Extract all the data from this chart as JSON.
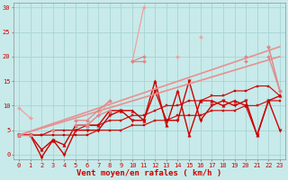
{
  "bg_color": "#c8eaea",
  "grid_color": "#a8d4d4",
  "xlabel": "Vent moyen/en rafales ( km/h )",
  "xlabel_color": "#cc0000",
  "xlim": [
    -0.5,
    23.5
  ],
  "ylim": [
    -1,
    31
  ],
  "xticks": [
    0,
    1,
    2,
    3,
    4,
    5,
    6,
    7,
    8,
    9,
    10,
    11,
    12,
    13,
    14,
    15,
    16,
    17,
    18,
    19,
    20,
    21,
    22,
    23
  ],
  "yticks": [
    0,
    5,
    10,
    15,
    20,
    25,
    30
  ],
  "tick_color": "#cc0000",
  "series": [
    {
      "x": [
        0,
        1,
        2,
        3,
        4,
        5,
        6,
        7,
        8,
        9,
        10,
        11,
        12,
        13,
        14,
        15,
        16,
        17,
        18,
        19,
        20,
        21,
        22,
        23
      ],
      "y": [
        4,
        4,
        4,
        4,
        4,
        4,
        4,
        5,
        5,
        5,
        6,
        6,
        7,
        7,
        8,
        8,
        8,
        9,
        9,
        9,
        10,
        10,
        11,
        11
      ],
      "color": "#cc0000",
      "lw": 0.8,
      "marker": "s",
      "ms": 1.5
    },
    {
      "x": [
        0,
        1,
        2,
        3,
        4,
        5,
        6,
        7,
        8,
        9,
        10,
        11,
        12,
        13,
        14,
        15,
        16,
        17,
        18,
        19,
        20,
        21,
        22,
        23
      ],
      "y": [
        4,
        4,
        4,
        5,
        5,
        5,
        6,
        6,
        7,
        7,
        8,
        8,
        9,
        10,
        10,
        11,
        11,
        12,
        12,
        13,
        13,
        14,
        14,
        12
      ],
      "color": "#cc0000",
      "lw": 0.8,
      "marker": "s",
      "ms": 1.5
    },
    {
      "x": [
        0,
        1,
        2,
        3,
        4,
        5,
        6,
        7,
        8,
        9,
        10,
        11,
        12,
        13,
        14,
        15,
        16,
        17,
        18,
        19,
        20,
        21,
        22,
        23
      ],
      "y": [
        4,
        4,
        1,
        3,
        2,
        6,
        6,
        6,
        9,
        9,
        9,
        7,
        15,
        6,
        13,
        4,
        11,
        11,
        10,
        11,
        10,
        4,
        11,
        12
      ],
      "color": "#cc0000",
      "lw": 1.0,
      "marker": "^",
      "ms": 2.5
    },
    {
      "x": [
        0,
        1,
        2,
        3,
        4,
        5,
        6,
        7,
        8,
        9,
        10,
        11,
        12,
        13,
        14,
        15,
        16,
        17,
        18,
        19,
        20,
        21,
        22,
        23
      ],
      "y": [
        4,
        4,
        -0.5,
        3,
        0,
        5,
        5,
        5,
        8,
        9,
        7,
        7,
        13,
        7,
        7,
        15,
        7,
        10,
        11,
        10,
        11,
        4,
        11,
        5
      ],
      "color": "#cc0000",
      "lw": 1.0,
      "marker": "v",
      "ms": 2.5
    },
    {
      "x": [
        0,
        23
      ],
      "y": [
        4,
        22
      ],
      "color": "#e89090",
      "lw": 1.2,
      "marker": null,
      "ms": 0
    },
    {
      "x": [
        0,
        23
      ],
      "y": [
        4,
        20
      ],
      "color": "#e89090",
      "lw": 1.2,
      "marker": null,
      "ms": 0
    },
    {
      "x": [
        0,
        1,
        2,
        3,
        4,
        5,
        6,
        7,
        8,
        9,
        10,
        11,
        12,
        13,
        14,
        15,
        16,
        17,
        18,
        19,
        20,
        21,
        22,
        23
      ],
      "y": [
        9.5,
        7.5,
        null,
        5,
        null,
        null,
        6,
        8,
        11,
        null,
        19,
        30,
        null,
        null,
        20,
        null,
        24,
        null,
        null,
        null,
        20,
        null,
        22,
        13
      ],
      "color": "#f0a0a0",
      "lw": 0.9,
      "marker": "D",
      "ms": 2
    },
    {
      "x": [
        0,
        1,
        2,
        3,
        4,
        5,
        6,
        7,
        8,
        9,
        10,
        11,
        12,
        13,
        14,
        15,
        16,
        17,
        18,
        19,
        20,
        21,
        22,
        23
      ],
      "y": [
        4,
        4,
        null,
        5,
        null,
        7,
        7,
        9,
        11,
        null,
        19,
        19,
        null,
        null,
        null,
        null,
        null,
        null,
        null,
        null,
        20,
        null,
        22,
        13
      ],
      "color": "#e08888",
      "lw": 0.9,
      "marker": "D",
      "ms": 2
    },
    {
      "x": [
        0,
        1,
        2,
        3,
        4,
        5,
        6,
        7,
        8,
        9,
        10,
        11,
        12,
        13,
        14,
        15,
        16,
        17,
        18,
        19,
        20,
        21,
        22,
        23
      ],
      "y": [
        4,
        4,
        null,
        5,
        null,
        6,
        6,
        8,
        9,
        null,
        19,
        20,
        null,
        null,
        null,
        null,
        null,
        null,
        null,
        null,
        19,
        null,
        20,
        13
      ],
      "color": "#e08888",
      "lw": 0.9,
      "marker": "D",
      "ms": 2
    }
  ]
}
